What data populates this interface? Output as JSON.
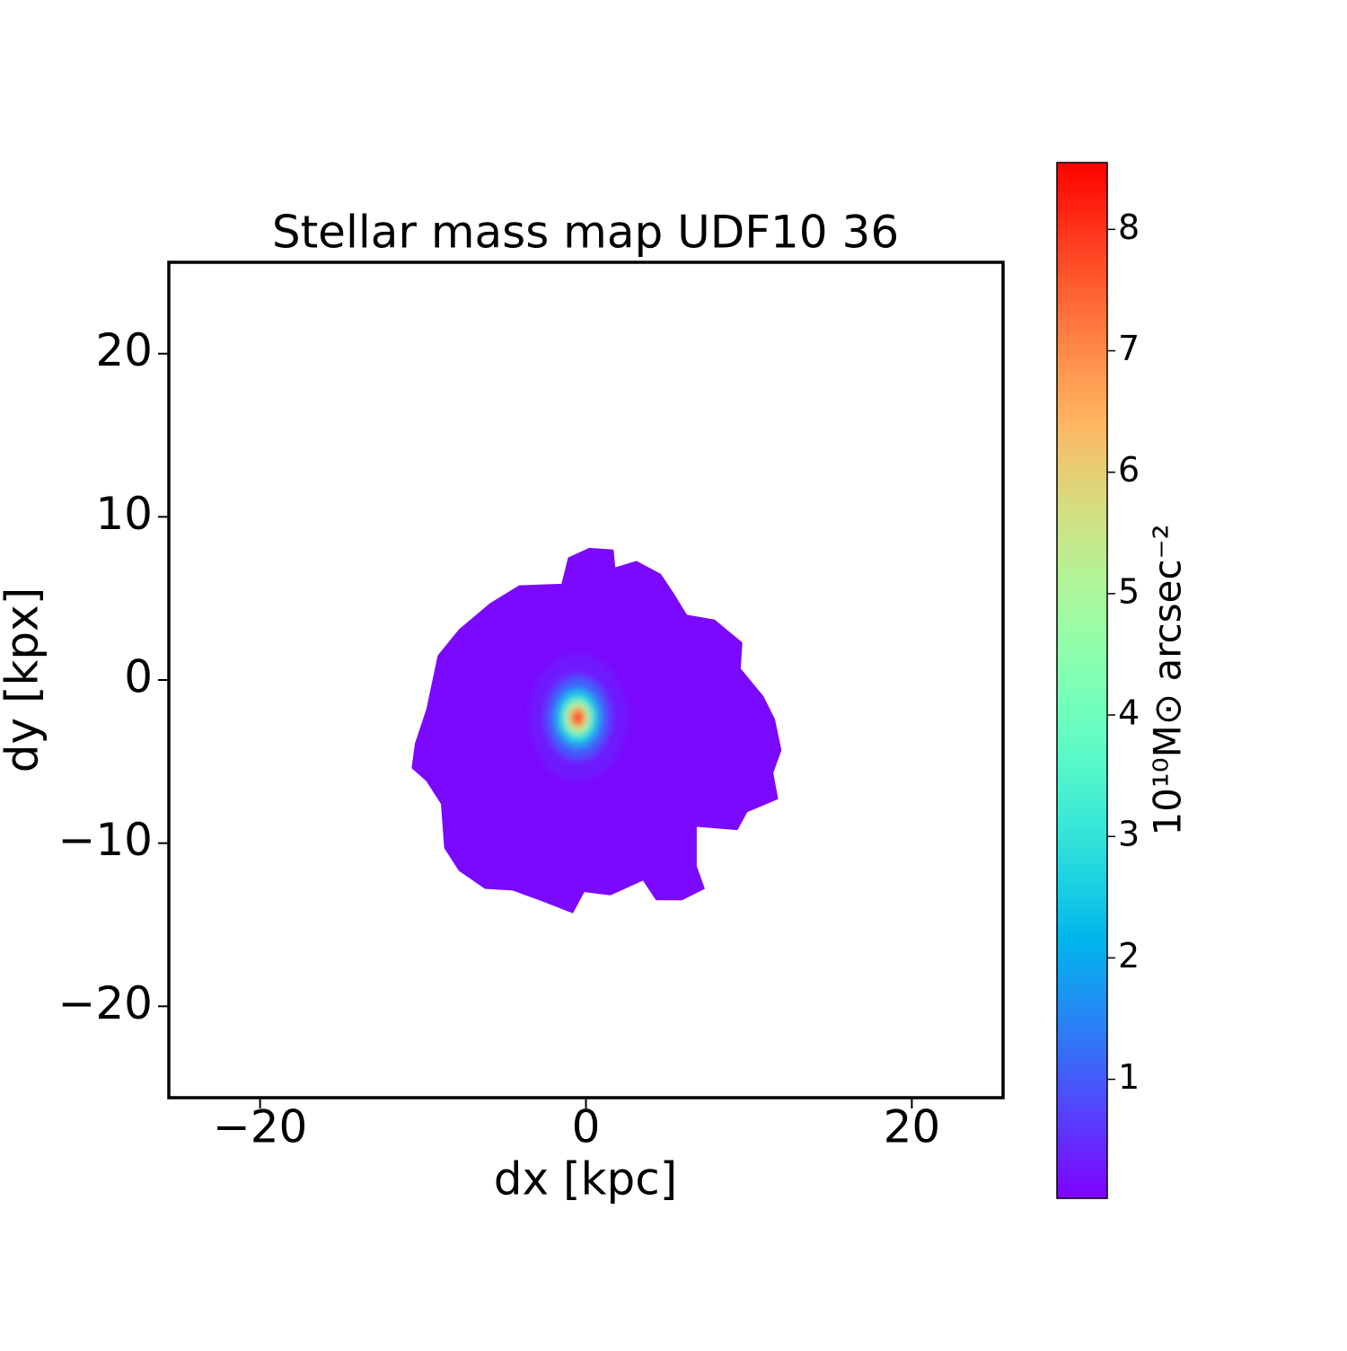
{
  "chart_data": {
    "type": "image-map",
    "title": "Stellar mass map UDF10 36",
    "x_label": "dx [kpc]",
    "y_label": "dy [kpx]",
    "colorbar_label": "10¹⁰M⊙ arcsec⁻²",
    "colormap": "rainbow",
    "xlim": [
      -25.6,
      25.6
    ],
    "ylim": [
      -25.6,
      25.6
    ],
    "xticks": [
      {
        "value": -20,
        "label": "−20"
      },
      0,
      20
    ],
    "yticks": [
      {
        "value": -20,
        "label": "−20"
      },
      {
        "value": -10,
        "label": "−10"
      },
      0,
      10,
      20
    ],
    "clim": [
      0.02,
      8.55
    ],
    "cticks": [
      1,
      2,
      3,
      4,
      5,
      6,
      7,
      8
    ],
    "region": {
      "value": 0.1,
      "outline_x": [
        -1.1,
        0.2,
        1.7,
        1.8,
        3.1,
        4.6,
        5.4,
        6.2,
        7.9,
        9.6,
        9.5,
        10.9,
        11.6,
        12.0,
        11.5,
        11.8,
        9.9,
        9.3,
        6.8,
        6.8,
        7.3,
        5.9,
        4.3,
        3.5,
        1.5,
        -0.1,
        -0.8,
        -2.6,
        -4.5,
        -6.2,
        -7.8,
        -8.7,
        -8.9,
        -9.8,
        -10.7,
        -10.5,
        -9.8,
        -9.1,
        -7.8,
        -5.9,
        -4.1,
        -1.5
      ],
      "outline_y": [
        7.5,
        8.1,
        8.0,
        6.9,
        7.3,
        6.5,
        5.3,
        4.0,
        3.7,
        2.3,
        0.7,
        -1.0,
        -2.4,
        -4.3,
        -5.7,
        -7.3,
        -8.1,
        -9.2,
        -9.0,
        -11.4,
        -12.8,
        -13.5,
        -13.5,
        -12.3,
        -13.2,
        -13.0,
        -14.3,
        -13.6,
        -12.9,
        -12.8,
        -11.7,
        -10.3,
        -7.6,
        -6.2,
        -5.4,
        -3.9,
        -1.8,
        1.5,
        3.1,
        4.7,
        5.8,
        5.9
      ]
    },
    "peak": {
      "x": -0.5,
      "y": -2.3,
      "values": [
        0.5,
        1,
        2,
        3,
        5,
        7,
        8.5
      ],
      "radii": [
        3,
        2,
        1.4,
        1.1,
        0.8,
        0.5,
        0.25
      ]
    }
  }
}
